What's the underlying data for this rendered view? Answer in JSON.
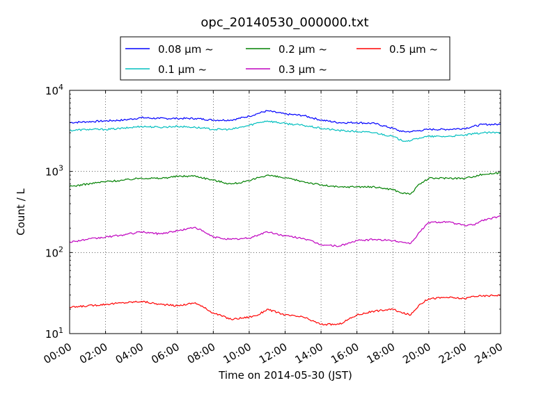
{
  "chart_data": {
    "type": "line",
    "title": "opc_20140530_000000.txt",
    "xlabel": "Time on 2014-05-30 (JST)",
    "ylabel": "Count / L",
    "yscale": "log",
    "ylim": [
      10,
      10000
    ],
    "xlim": [
      "00:00",
      "24:00"
    ],
    "grid": true,
    "legend_placement": "top",
    "x_ticks": [
      "00:00",
      "02:00",
      "04:00",
      "06:00",
      "08:00",
      "10:00",
      "12:00",
      "14:00",
      "16:00",
      "18:00",
      "20:00",
      "22:00",
      "24:00"
    ],
    "y_ticks": [
      {
        "value": 10,
        "base": "10",
        "exp": "1"
      },
      {
        "value": 100,
        "base": "10",
        "exp": "2"
      },
      {
        "value": 1000,
        "base": "10",
        "exp": "3"
      },
      {
        "value": 10000,
        "base": "10",
        "exp": "4"
      }
    ],
    "x": [
      "00:00",
      "01:00",
      "02:00",
      "03:00",
      "04:00",
      "05:00",
      "06:00",
      "07:00",
      "08:00",
      "09:00",
      "10:00",
      "10:30",
      "11:00",
      "12:00",
      "13:00",
      "14:00",
      "15:00",
      "16:00",
      "17:00",
      "18:00",
      "18:30",
      "19:00",
      "19:30",
      "20:00",
      "21:00",
      "22:00",
      "22:30",
      "23:00",
      "24:00"
    ],
    "series": [
      {
        "name": "0.08 μm ~",
        "color": "#0000ff",
        "values": [
          4000,
          4100,
          4200,
          4300,
          4600,
          4500,
          4500,
          4500,
          4300,
          4300,
          4800,
          5200,
          5600,
          5100,
          4900,
          4300,
          4000,
          4000,
          3900,
          3400,
          3100,
          3100,
          3200,
          3300,
          3300,
          3400,
          3600,
          3800,
          3800
        ]
      },
      {
        "name": "0.1 μm ~",
        "color": "#00bfbf",
        "values": [
          3200,
          3300,
          3300,
          3400,
          3600,
          3500,
          3600,
          3500,
          3300,
          3300,
          3700,
          4000,
          4200,
          3900,
          3700,
          3400,
          3200,
          3100,
          3000,
          2700,
          2400,
          2400,
          2600,
          2700,
          2700,
          2800,
          2900,
          3000,
          3000
        ]
      },
      {
        "name": "0.2 μm ~",
        "color": "#008000",
        "values": [
          650,
          700,
          750,
          780,
          830,
          820,
          870,
          880,
          780,
          700,
          760,
          840,
          900,
          830,
          750,
          680,
          640,
          650,
          640,
          600,
          540,
          530,
          700,
          820,
          830,
          820,
          870,
          920,
          960
        ]
      },
      {
        "name": "0.3 μm ~",
        "color": "#bf00bf",
        "values": [
          135,
          145,
          155,
          165,
          180,
          170,
          185,
          205,
          155,
          145,
          150,
          165,
          180,
          160,
          150,
          125,
          120,
          140,
          145,
          140,
          135,
          130,
          180,
          235,
          240,
          215,
          220,
          250,
          280
        ]
      },
      {
        "name": "0.5 μm ~",
        "color": "#ff0000",
        "values": [
          21,
          22,
          23,
          24,
          25,
          23,
          22,
          24,
          18,
          15,
          16,
          17,
          20,
          17,
          16,
          13,
          13,
          17,
          19,
          20,
          18,
          17,
          23,
          27,
          28,
          27,
          29,
          29,
          30
        ]
      }
    ]
  }
}
